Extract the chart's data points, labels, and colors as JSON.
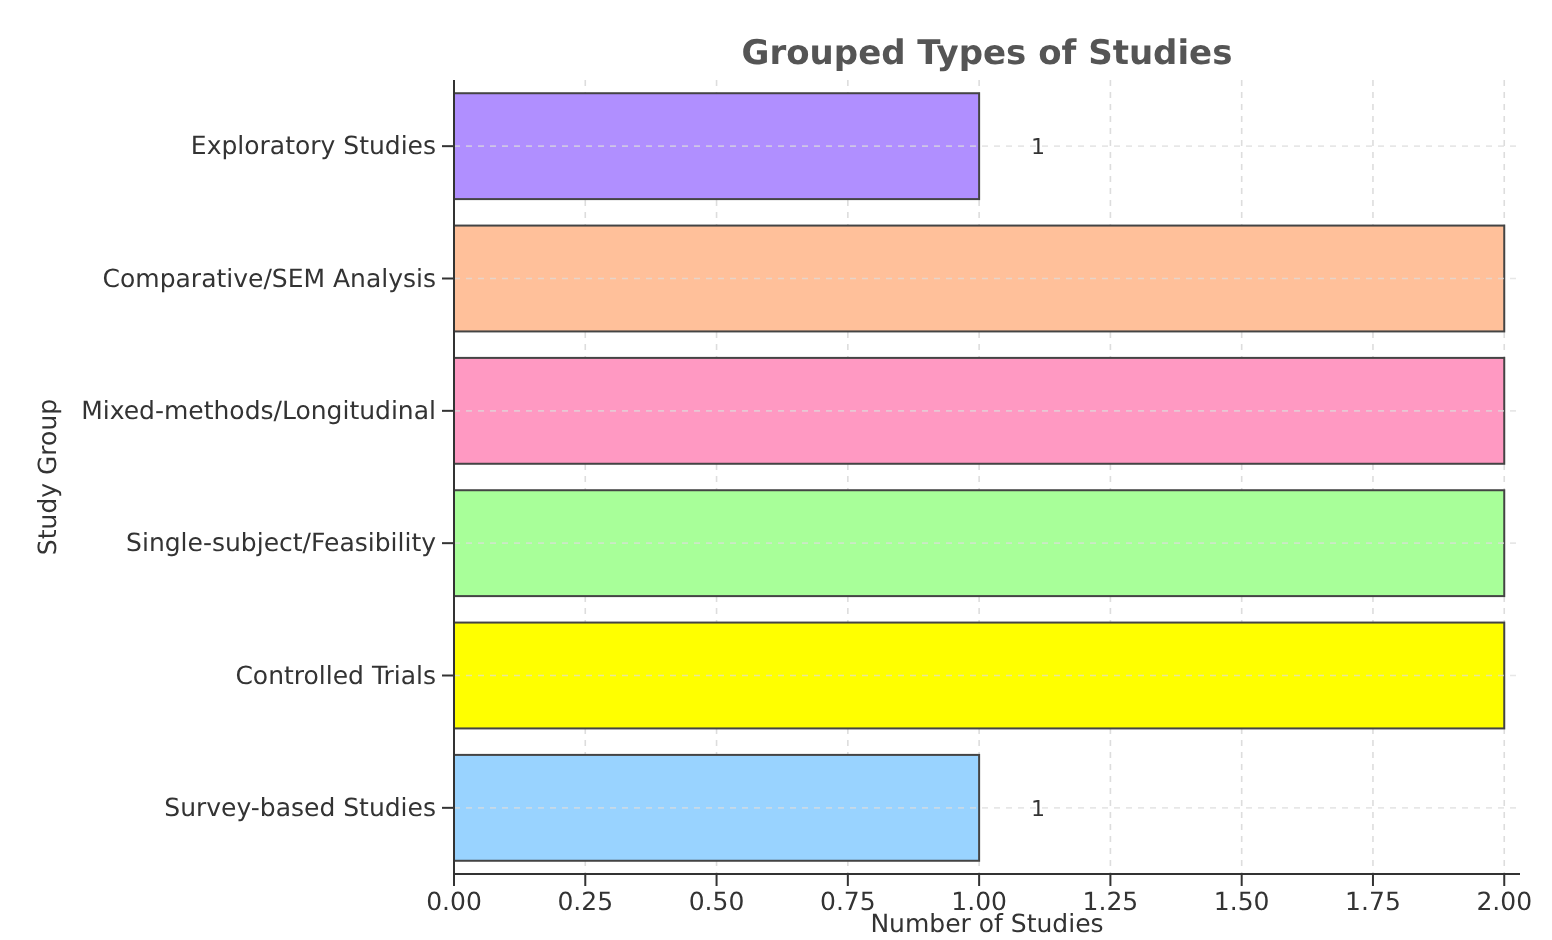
{
  "chart_data": {
    "type": "bar",
    "orientation": "horizontal",
    "title": "Grouped Types of Studies",
    "xlabel": "Number of Studies",
    "ylabel": "Study Group",
    "categories": [
      "Exploratory Studies",
      "Comparative/SEM Analysis",
      "Mixed-methods/Longitudinal",
      "Single-subject/Feasibility",
      "Controlled Trials",
      "Survey-based Studies"
    ],
    "values": [
      1,
      2,
      2,
      2,
      2,
      1
    ],
    "colors": [
      "#b08fff",
      "#ffc09a",
      "#ff99c2",
      "#a8ff99",
      "#ffff00",
      "#99d3ff"
    ],
    "value_labels": [
      "1",
      null,
      null,
      null,
      null,
      "1"
    ],
    "xlim": [
      0,
      2.03
    ],
    "xticks": [
      {
        "value": 0,
        "label": "0.00"
      },
      {
        "value": 0.25,
        "label": "0.25"
      },
      {
        "value": 0.5,
        "label": "0.50"
      },
      {
        "value": 0.75,
        "label": "0.75"
      },
      {
        "value": 1,
        "label": "1.00"
      },
      {
        "value": 1.25,
        "label": "1.25"
      },
      {
        "value": 1.5,
        "label": "1.50"
      },
      {
        "value": 1.75,
        "label": "1.75"
      },
      {
        "value": 2,
        "label": "2.00"
      }
    ],
    "grid": true
  }
}
